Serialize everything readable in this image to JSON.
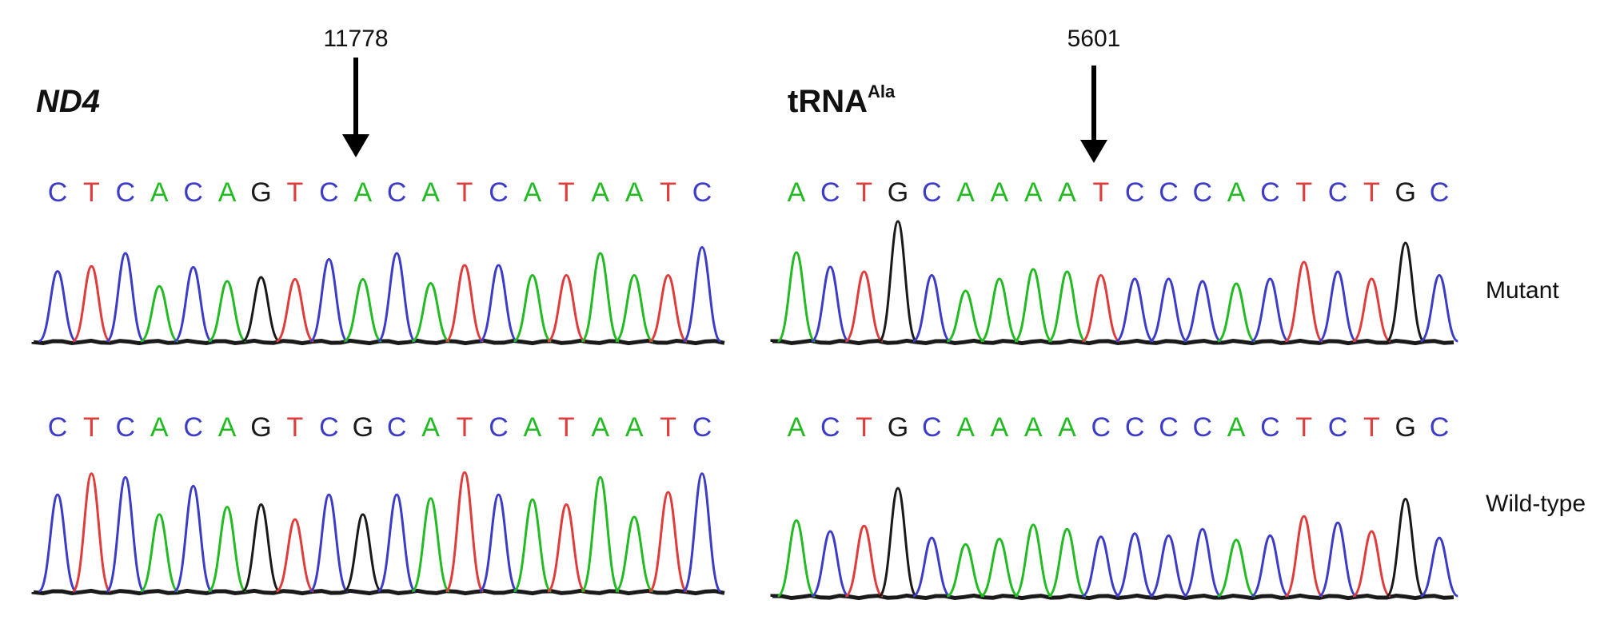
{
  "colors": {
    "A": "#22bb22",
    "C": "#3c3cc8",
    "G": "#1a1a1a",
    "T": "#e03c3c",
    "baseline": "#1a1a1a"
  },
  "labels": {
    "nd4_gene": "ND4",
    "trna_main": "tRNA",
    "trna_superscript": "Ala",
    "nd4_position": "11778",
    "trna_position": "5601",
    "mutant": "Mutant",
    "wild_type": "Wild-type"
  },
  "panels": [
    {
      "id": "nd4-mutant",
      "sequence": "CTCACAGTCACATCATAATC",
      "peak_heights": [
        0.7,
        0.75,
        0.88,
        0.55,
        0.74,
        0.6,
        0.64,
        0.62,
        0.82,
        0.62,
        0.88,
        0.58,
        0.76,
        0.76,
        0.66,
        0.66,
        0.88,
        0.66,
        0.66,
        0.94
      ]
    },
    {
      "id": "trna-mutant",
      "sequence": "ACTGCAAAATCCCACTCTGC",
      "peak_heights": [
        0.74,
        0.62,
        0.58,
        1.0,
        0.55,
        0.42,
        0.52,
        0.6,
        0.58,
        0.55,
        0.52,
        0.52,
        0.5,
        0.48,
        0.52,
        0.66,
        0.58,
        0.52,
        0.82,
        0.55
      ]
    },
    {
      "id": "nd4-wildtype",
      "sequence": "CTCACAGTCGCATCATAATC",
      "peak_heights": [
        0.78,
        0.95,
        0.92,
        0.62,
        0.85,
        0.68,
        0.7,
        0.58,
        0.78,
        0.62,
        0.78,
        0.75,
        0.96,
        0.78,
        0.74,
        0.7,
        0.92,
        0.6,
        0.8,
        0.95
      ]
    },
    {
      "id": "trna-wildtype",
      "sequence": "ACTGCAAAACCCCACTCTGC",
      "peak_heights": [
        0.7,
        0.6,
        0.65,
        1.0,
        0.54,
        0.48,
        0.53,
        0.66,
        0.62,
        0.55,
        0.58,
        0.56,
        0.62,
        0.52,
        0.56,
        0.74,
        0.68,
        0.6,
        0.9,
        0.54
      ]
    }
  ]
}
